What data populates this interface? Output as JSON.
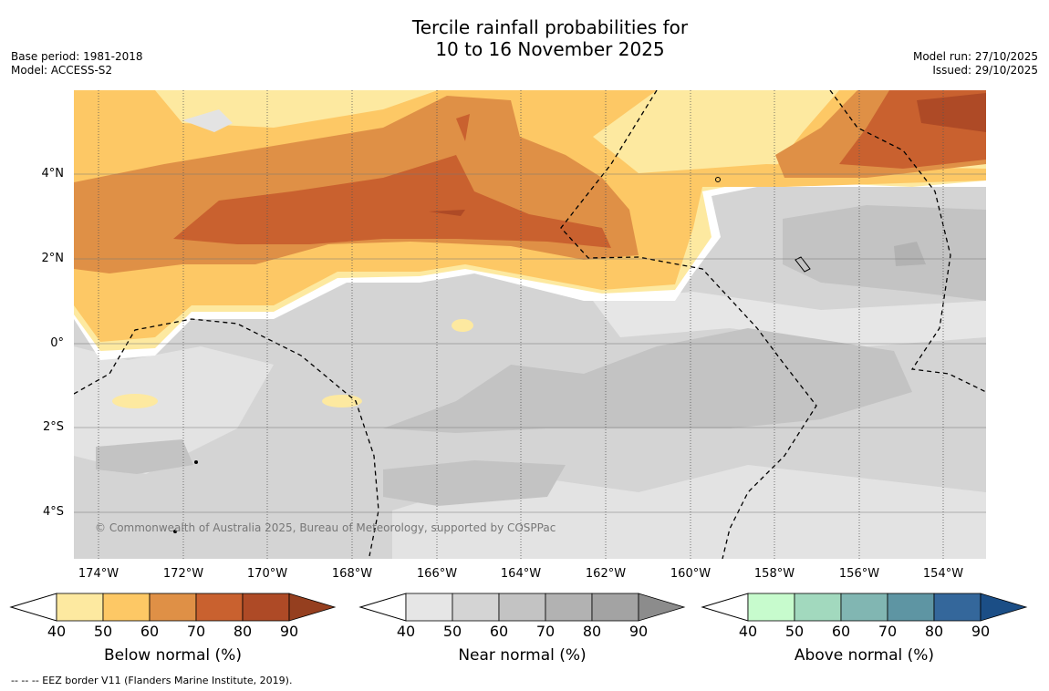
{
  "title_line1": "Tercile rainfall probabilities for",
  "title_line2": "10 to 16 November 2025",
  "base_period": "Base period: 1981-2018",
  "model": "Model: ACCESS-S2",
  "model_run": "Model run: 27/10/2025",
  "issued": "Issued: 29/10/2025",
  "lat_labels": [
    "4°N",
    "2°N",
    "0°",
    "2°S",
    "4°S"
  ],
  "lon_labels": [
    "174°W",
    "172°W",
    "170°W",
    "168°W",
    "166°W",
    "164°W",
    "162°W",
    "160°W",
    "158°W",
    "156°W",
    "154°W"
  ],
  "copyright": "© Commonwealth of Australia 2025, Bureau of Meteorology, supported by COSPPac",
  "footnote": "--  --  -- EEZ border V11 (Flanders Marine Institute, 2019).",
  "colorbars": [
    {
      "label": "Below normal (%)",
      "ticks": [
        "40",
        "50",
        "60",
        "70",
        "80",
        "90"
      ],
      "colors": [
        "#fde9a0",
        "#fdc865",
        "#df9046",
        "#c9612f",
        "#ae4a26",
        "#953f1f"
      ]
    },
    {
      "label": "Near normal (%)",
      "ticks": [
        "40",
        "50",
        "60",
        "70",
        "80",
        "90"
      ],
      "colors": [
        "#e6e6e6",
        "#d4d4d4",
        "#c3c3c3",
        "#b2b2b2",
        "#a3a3a3",
        "#8c8c8c"
      ]
    },
    {
      "label": "Above normal (%)",
      "ticks": [
        "40",
        "50",
        "60",
        "70",
        "80",
        "90"
      ],
      "colors": [
        "#c7fbcd",
        "#a2d9be",
        "#81b6b2",
        "#5e95a3",
        "#34679b",
        "#1b4e86"
      ]
    }
  ]
}
